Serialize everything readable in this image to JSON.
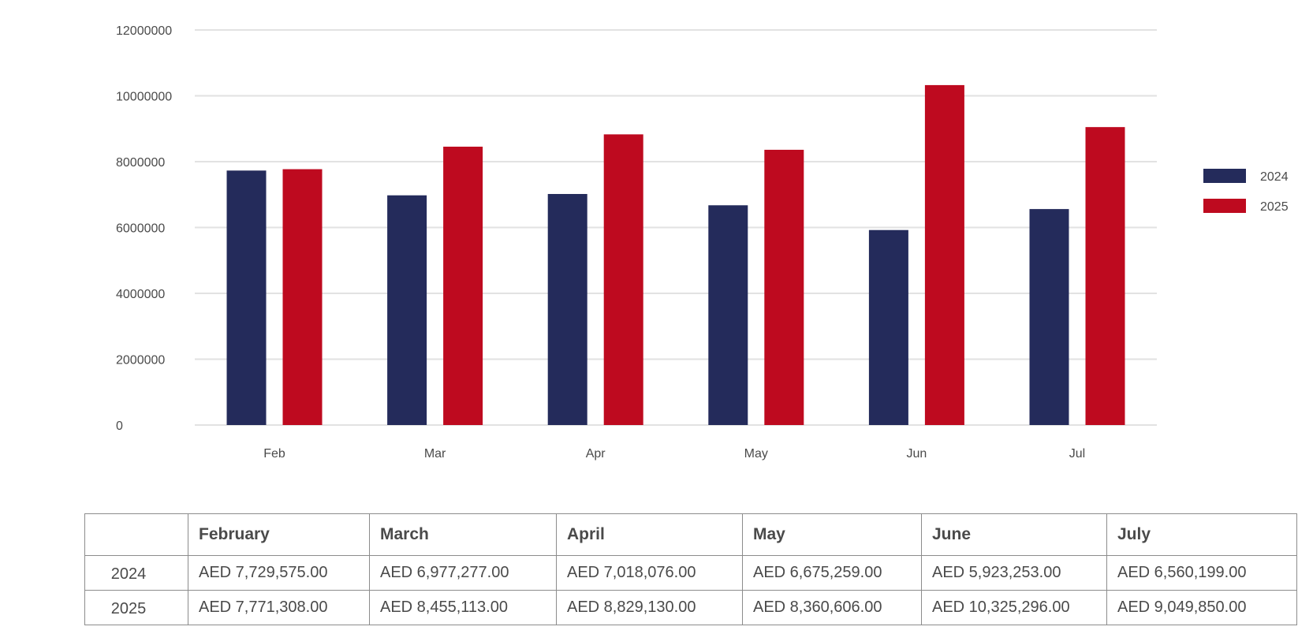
{
  "chart_data": {
    "type": "bar",
    "categories": [
      "Feb",
      "Mar",
      "Apr",
      "May",
      "Jun",
      "Jul"
    ],
    "series": [
      {
        "name": "2024",
        "color": "#242b5b",
        "values": [
          7729575,
          6977277,
          7018076,
          6675259,
          5923253,
          6560199
        ]
      },
      {
        "name": "2025",
        "color": "#be0a1f",
        "values": [
          7771308,
          8455113,
          8829130,
          8360606,
          10325296,
          9049850
        ]
      }
    ],
    "ylim": [
      0,
      12000000
    ],
    "yticks": [
      "0",
      "2000000",
      "4000000",
      "6000000",
      "8000000",
      "10000000",
      "12000000"
    ],
    "grid": true,
    "legend": "right"
  },
  "table": {
    "columns": [
      "",
      "February",
      "March",
      "April",
      "May",
      "June",
      "July"
    ],
    "rows": [
      {
        "label": "2024",
        "cells": [
          "AED 7,729,575.00",
          "AED 6,977,277.00",
          "AED 7,018,076.00",
          "AED 6,675,259.00",
          "AED 5,923,253.00",
          "AED 6,560,199.00"
        ]
      },
      {
        "label": "2025",
        "cells": [
          "AED 7,771,308.00",
          "AED 8,455,113.00",
          "AED 8,829,130.00",
          "AED 8,360,606.00",
          "AED 10,325,296.00",
          "AED 9,049,850.00"
        ]
      }
    ]
  }
}
